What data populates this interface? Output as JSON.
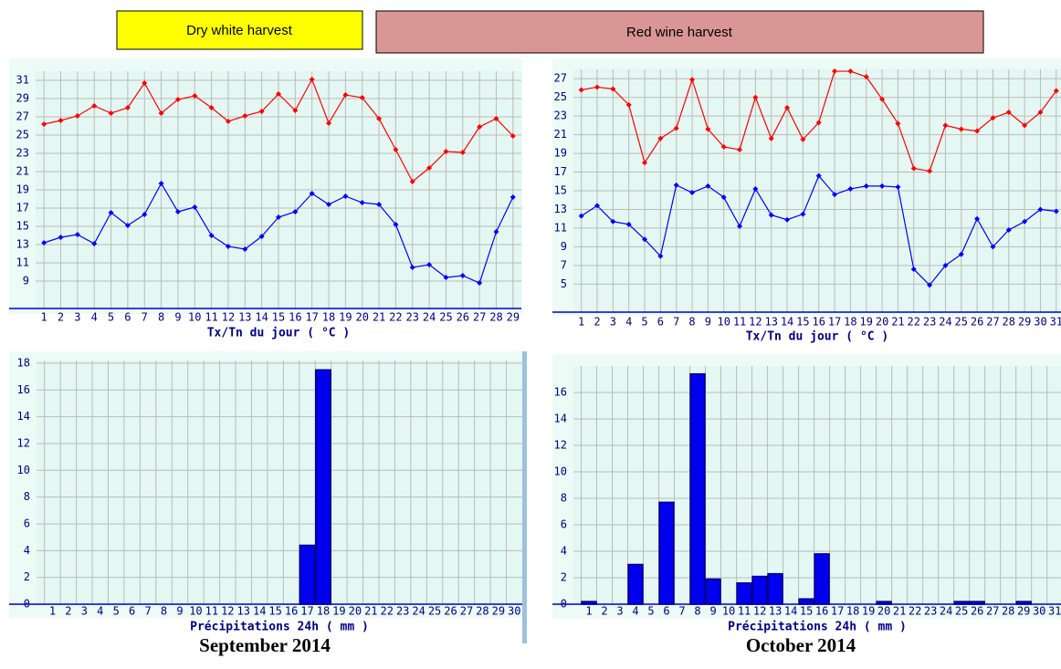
{
  "harvest_labels": [
    "Dry white harvest",
    "Red wine harvest"
  ],
  "captions": [
    "September 2014",
    "October 2014"
  ],
  "chart_data": [
    {
      "type": "line",
      "xlabel": "Tx/Tn du jour ( °C )",
      "x": [
        1,
        2,
        3,
        4,
        5,
        6,
        7,
        8,
        9,
        10,
        11,
        12,
        13,
        14,
        15,
        16,
        17,
        18,
        19,
        20,
        21,
        22,
        23,
        24,
        25,
        26,
        27,
        28,
        29
      ],
      "xlim": [
        0.5,
        29.5
      ],
      "xticks": [
        1,
        2,
        3,
        4,
        5,
        6,
        7,
        8,
        9,
        10,
        11,
        12,
        13,
        14,
        15,
        16,
        17,
        18,
        19,
        20,
        21,
        22,
        23,
        24,
        25,
        26,
        27,
        28,
        29
      ],
      "ylim": [
        6,
        32
      ],
      "yticks": [
        9,
        11,
        13,
        15,
        17,
        19,
        21,
        23,
        25,
        27,
        29,
        31
      ],
      "grid": true,
      "series": [
        {
          "name": "Tx",
          "color": "#ff0000",
          "values": [
            26.2,
            26.6,
            27.1,
            28.2,
            27.4,
            28.0,
            30.7,
            27.4,
            28.9,
            29.3,
            28.0,
            26.5,
            27.1,
            27.6,
            29.5,
            27.7,
            31.1,
            26.3,
            29.4,
            29.1,
            26.8,
            23.4,
            19.9,
            21.4,
            23.2,
            23.1,
            25.9,
            26.8,
            24.9
          ]
        },
        {
          "name": "Tn",
          "color": "#0000ff",
          "values": [
            13.2,
            13.8,
            14.1,
            13.1,
            16.5,
            15.1,
            16.3,
            19.7,
            16.6,
            17.1,
            14.0,
            12.8,
            12.5,
            13.9,
            16.0,
            16.6,
            18.6,
            17.4,
            18.3,
            17.6,
            17.4,
            15.2,
            10.5,
            10.8,
            9.4,
            9.6,
            8.8,
            14.4,
            18.2
          ]
        }
      ]
    },
    {
      "type": "line",
      "xlabel": "Tx/Tn du jour ( °C )",
      "x": [
        1,
        2,
        3,
        4,
        5,
        6,
        7,
        8,
        9,
        10,
        11,
        12,
        13,
        14,
        15,
        16,
        17,
        18,
        19,
        20,
        21,
        22,
        23,
        24,
        25,
        26,
        27,
        28,
        29,
        30,
        31
      ],
      "xlim": [
        0.5,
        31.3
      ],
      "xticks": [
        1,
        2,
        3,
        4,
        5,
        6,
        7,
        8,
        9,
        10,
        11,
        12,
        13,
        14,
        15,
        16,
        17,
        18,
        19,
        20,
        21,
        22,
        23,
        24,
        25,
        26,
        27,
        28,
        29,
        30,
        31
      ],
      "ylim": [
        2,
        28
      ],
      "yticks": [
        5,
        7,
        9,
        11,
        13,
        15,
        17,
        19,
        21,
        23,
        25,
        27
      ],
      "grid": true,
      "series": [
        {
          "name": "Tx",
          "color": "#ff0000",
          "values": [
            25.8,
            26.1,
            25.9,
            24.2,
            18.0,
            20.6,
            21.7,
            26.9,
            21.6,
            19.7,
            19.4,
            25.0,
            20.6,
            23.9,
            20.5,
            22.3,
            27.8,
            27.8,
            27.2,
            24.8,
            22.2,
            17.4,
            17.1,
            22.0,
            21.6,
            21.4,
            22.8,
            23.4,
            22.0,
            23.4,
            25.7
          ]
        },
        {
          "name": "Tn",
          "color": "#0000ff",
          "values": [
            12.3,
            13.4,
            11.7,
            11.4,
            9.8,
            8.0,
            15.6,
            14.8,
            15.5,
            14.3,
            11.2,
            15.2,
            12.4,
            11.9,
            12.5,
            16.6,
            14.6,
            15.2,
            15.5,
            15.5,
            15.4,
            6.6,
            4.9,
            7.0,
            8.2,
            12.0,
            9.0,
            10.8,
            11.7,
            13.0,
            12.8
          ]
        }
      ]
    },
    {
      "type": "bar",
      "xlabel": "Précipitations 24h ( mm )",
      "color": "#0000ee",
      "x": [
        1,
        2,
        3,
        4,
        5,
        6,
        7,
        8,
        9,
        10,
        11,
        12,
        13,
        14,
        15,
        16,
        17,
        18,
        19,
        20,
        21,
        22,
        23,
        24,
        25,
        26,
        27,
        28,
        29,
        30
      ],
      "xlim": [
        0,
        30.5
      ],
      "xticks": [
        1,
        2,
        3,
        4,
        5,
        6,
        7,
        8,
        9,
        10,
        11,
        12,
        13,
        14,
        15,
        16,
        17,
        18,
        19,
        20,
        21,
        22,
        23,
        24,
        25,
        26,
        27,
        28,
        29,
        30
      ],
      "ylim": [
        0,
        18.2
      ],
      "yticks": [
        0,
        2,
        4,
        6,
        8,
        10,
        12,
        14,
        16,
        18
      ],
      "grid": true,
      "values": [
        0,
        0,
        0,
        0,
        0,
        0,
        0,
        0,
        0,
        0,
        0,
        0,
        0,
        0,
        0,
        0,
        4.4,
        17.5,
        0,
        0,
        0,
        0,
        0,
        0,
        0,
        0,
        0,
        0,
        0,
        0
      ]
    },
    {
      "type": "bar",
      "xlabel": "Précipitations 24h ( mm )",
      "color": "#0000ee",
      "x": [
        1,
        2,
        3,
        4,
        5,
        6,
        7,
        8,
        9,
        10,
        11,
        12,
        13,
        14,
        15,
        16,
        17,
        18,
        19,
        20,
        21,
        22,
        23,
        24,
        25,
        26,
        27,
        28,
        29,
        30,
        31
      ],
      "xlim": [
        0,
        31.4
      ],
      "xticks": [
        1,
        2,
        3,
        4,
        5,
        6,
        7,
        8,
        9,
        10,
        11,
        12,
        13,
        14,
        15,
        16,
        17,
        18,
        19,
        20,
        21,
        22,
        23,
        24,
        25,
        26,
        27,
        28,
        29,
        30,
        31
      ],
      "ylim": [
        0,
        18
      ],
      "yticks": [
        0,
        2,
        4,
        6,
        8,
        10,
        12,
        14,
        16
      ],
      "grid": true,
      "values": [
        0.2,
        0,
        0,
        3.0,
        0,
        7.7,
        0,
        17.4,
        1.9,
        0,
        1.6,
        2.1,
        2.3,
        0,
        0.4,
        3.8,
        0,
        0,
        0,
        0.2,
        0,
        0,
        0,
        0,
        0.2,
        0.2,
        0,
        0,
        0.2,
        0,
        0
      ]
    }
  ]
}
